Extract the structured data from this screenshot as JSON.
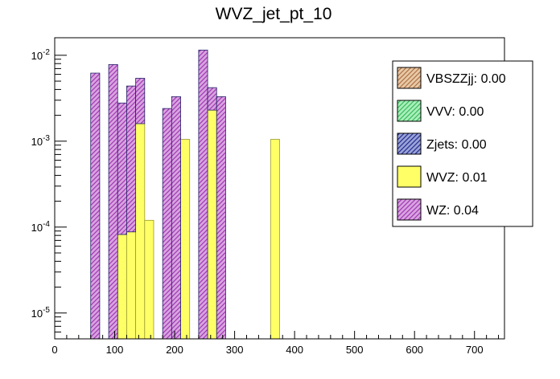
{
  "chart_data": {
    "type": "bar",
    "subtype": "stacked-histogram",
    "title": "WVZ_jet_pt_10",
    "xlabel": "",
    "ylabel": "",
    "xlim": [
      0,
      750
    ],
    "ylog": true,
    "ylim": [
      5e-06,
      0.016
    ],
    "bin_width": 15,
    "x_ticks": [
      0,
      100,
      200,
      300,
      400,
      500,
      600,
      700
    ],
    "x_tick_labels": [
      "0",
      "100",
      "200",
      "300",
      "400",
      "500",
      "600",
      "700"
    ],
    "y_ticks": [
      1e-05,
      0.0001,
      0.001,
      0.01
    ],
    "y_tick_labels": [
      {
        "base": "10",
        "exp": "-5"
      },
      {
        "base": "10",
        "exp": "-4"
      },
      {
        "base": "10",
        "exp": "-3"
      },
      {
        "base": "10",
        "exp": "-2"
      }
    ],
    "bins_lo": [
      60,
      90,
      105,
      120,
      135,
      150,
      180,
      195,
      210,
      240,
      255,
      270,
      360
    ],
    "series": [
      {
        "name": "WVZ",
        "color": "#ffff66",
        "edge": "#999933",
        "pattern": "solid",
        "values": [
          0,
          0,
          8.2e-05,
          8.8e-05,
          0.0016,
          0.00012,
          0,
          0,
          0.00105,
          0,
          0.0023,
          0,
          0.00105
        ]
      },
      {
        "name": "WZ",
        "color": "#bb44cc",
        "edge": "#222266",
        "pattern": "hatch",
        "values": [
          0.0062,
          0.0078,
          0.0027,
          0.0043,
          0.0038,
          0,
          0.0024,
          0.0033,
          0,
          0.0115,
          0.0019,
          0.0033,
          0
        ]
      }
    ],
    "legend": [
      {
        "label": "VBSZZjj: 0.00",
        "color": "#cc9966",
        "pattern": "hatch"
      },
      {
        "label": "VVV: 0.00",
        "color": "#55dd77",
        "pattern": "hatch"
      },
      {
        "label": "Zjets: 0.00",
        "color": "#2233aa",
        "pattern": "hatch"
      },
      {
        "label": "WVZ: 0.01",
        "color": "#ffff66",
        "pattern": "solid"
      },
      {
        "label": "WZ: 0.04",
        "color": "#bb44cc",
        "pattern": "hatch"
      }
    ],
    "legend_position": "top-right"
  }
}
